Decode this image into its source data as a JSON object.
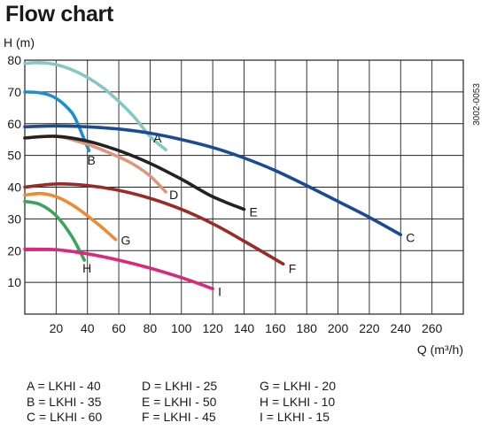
{
  "chart_data": {
    "type": "line",
    "title": "Flow chart",
    "ylabel": "H (m)",
    "xlabel": "Q (m³/h)",
    "doc_code": "3002-0053",
    "xlim": [
      0,
      280
    ],
    "ylim": [
      0,
      80
    ],
    "x_ticks": [
      20,
      40,
      60,
      80,
      100,
      120,
      140,
      160,
      180,
      200,
      220,
      240,
      260
    ],
    "y_ticks": [
      10,
      20,
      30,
      40,
      50,
      60,
      70,
      80
    ],
    "grid": true,
    "series": [
      {
        "name": "A",
        "color": "#86c8c6",
        "x": [
          0,
          10,
          20,
          30,
          40,
          50,
          60,
          70,
          80,
          90
        ],
        "y": [
          79,
          79.2,
          78.6,
          77,
          74.6,
          71.3,
          67,
          62,
          56,
          51.8
        ]
      },
      {
        "name": "B",
        "color": "#1b8fd2",
        "x": [
          0,
          10,
          20,
          30,
          35,
          38,
          41
        ],
        "y": [
          70,
          69.7,
          68,
          63.5,
          58.5,
          55,
          51.5
        ]
      },
      {
        "name": "C",
        "color": "#1c4a94",
        "x": [
          0,
          20,
          40,
          60,
          80,
          100,
          120,
          140,
          160,
          180,
          200,
          220,
          240
        ],
        "y": [
          59,
          59.3,
          59,
          58.3,
          57,
          55,
          52.5,
          49.2,
          45.2,
          40.5,
          35.5,
          30.5,
          25
        ]
      },
      {
        "name": "D",
        "color": "#e0967a",
        "x": [
          0,
          20,
          40,
          60,
          70,
          80,
          90
        ],
        "y": [
          55.5,
          56,
          53.5,
          49.5,
          47,
          43.5,
          38.5
        ]
      },
      {
        "name": "E",
        "color": "#222222",
        "x": [
          0,
          20,
          40,
          60,
          80,
          100,
          120,
          140
        ],
        "y": [
          55.5,
          56,
          54.5,
          51.5,
          47.5,
          42.5,
          37,
          33
        ]
      },
      {
        "name": "F",
        "color": "#9b2b26",
        "x": [
          0,
          20,
          40,
          60,
          80,
          100,
          120,
          140,
          165
        ],
        "y": [
          40,
          41,
          40.5,
          39,
          36.5,
          33,
          28.5,
          23,
          15.8
        ]
      },
      {
        "name": "G",
        "color": "#ef8a34",
        "x": [
          0,
          10,
          20,
          30,
          40,
          50,
          58
        ],
        "y": [
          37.5,
          38,
          37,
          34.5,
          31,
          27,
          23.5
        ]
      },
      {
        "name": "H",
        "color": "#3aa55a",
        "x": [
          0,
          10,
          20,
          30,
          38
        ],
        "y": [
          35.5,
          34.5,
          31,
          24.5,
          17
        ]
      },
      {
        "name": "I",
        "color": "#d9287d",
        "x": [
          0,
          20,
          40,
          60,
          80,
          100,
          120
        ],
        "y": [
          20.5,
          20.3,
          19,
          17,
          14.5,
          11.5,
          8
        ]
      }
    ],
    "legend": [
      [
        "A = LKHI - 40",
        "D = LKHI - 25",
        "G = LKHI - 20"
      ],
      [
        "B = LKHI - 35",
        "E = LKHI - 50",
        "H = LKHI - 10"
      ],
      [
        "C = LKHI - 60",
        "F = LKHI - 45",
        "I = LKHI - 15"
      ]
    ]
  }
}
